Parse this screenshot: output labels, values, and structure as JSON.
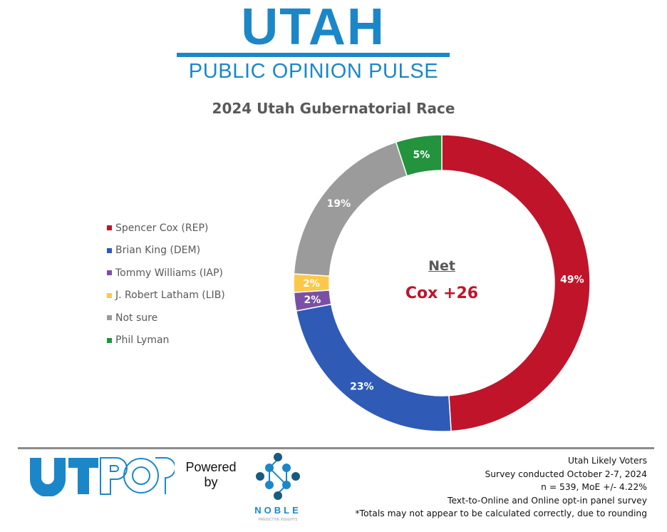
{
  "header": {
    "brand_title": "UTAH",
    "brand_subtitle": "PUBLIC OPINION PULSE",
    "brand_color": "#1b87c9"
  },
  "chart_title": "2024 Utah Gubernatorial Race",
  "center": {
    "label": "Net",
    "value": "Cox +26",
    "value_color": "#c0142a"
  },
  "chart_data": {
    "type": "pie",
    "subtype": "donut",
    "title": "2024 Utah Gubernatorial Race",
    "categories": [
      "Spencer Cox (REP)",
      "Brian King (DEM)",
      "Tommy Williams (IAP)",
      "J. Robert Latham (LIB)",
      "Not sure",
      "Phil Lyman"
    ],
    "values": [
      49,
      23,
      2,
      2,
      19,
      5
    ],
    "labels": [
      "49%",
      "23%",
      "2%",
      "2%",
      "19%",
      "5%"
    ],
    "colors": [
      "#c0142a",
      "#2f5bb7",
      "#7c4fa6",
      "#fdc84a",
      "#9b9b9b",
      "#23933e"
    ],
    "units": "%",
    "start_angle_deg": 0,
    "direction": "clockwise",
    "legend_position": "left",
    "center_annotation": "Net Cox +26"
  },
  "legend": {
    "items": [
      {
        "label": "Spencer Cox (REP)",
        "color": "#c0142a"
      },
      {
        "label": "Brian King (DEM)",
        "color": "#2f5bb7"
      },
      {
        "label": "Tommy Williams (IAP)",
        "color": "#7c4fa6"
      },
      {
        "label": "J. Robert Latham (LIB)",
        "color": "#fdc84a"
      },
      {
        "label": "Not sure",
        "color": "#9b9b9b"
      },
      {
        "label": "Phil Lyman",
        "color": "#23933e"
      }
    ]
  },
  "footer": {
    "utpop_logo": "UTPOP",
    "powered_by_line1": "Powered",
    "powered_by_line2": "by",
    "noble_name": "NOBLE",
    "noble_tagline": "PREDICTIVE INSIGHTS",
    "notes": [
      "Utah Likely Voters",
      "Survey conducted October 2-7, 2024",
      "n = 539, MoE +/- 4.22%",
      "Text-to-Online and Online opt-in panel survey",
      "*Totals may not appear to be calculated correctly, due to rounding"
    ]
  }
}
